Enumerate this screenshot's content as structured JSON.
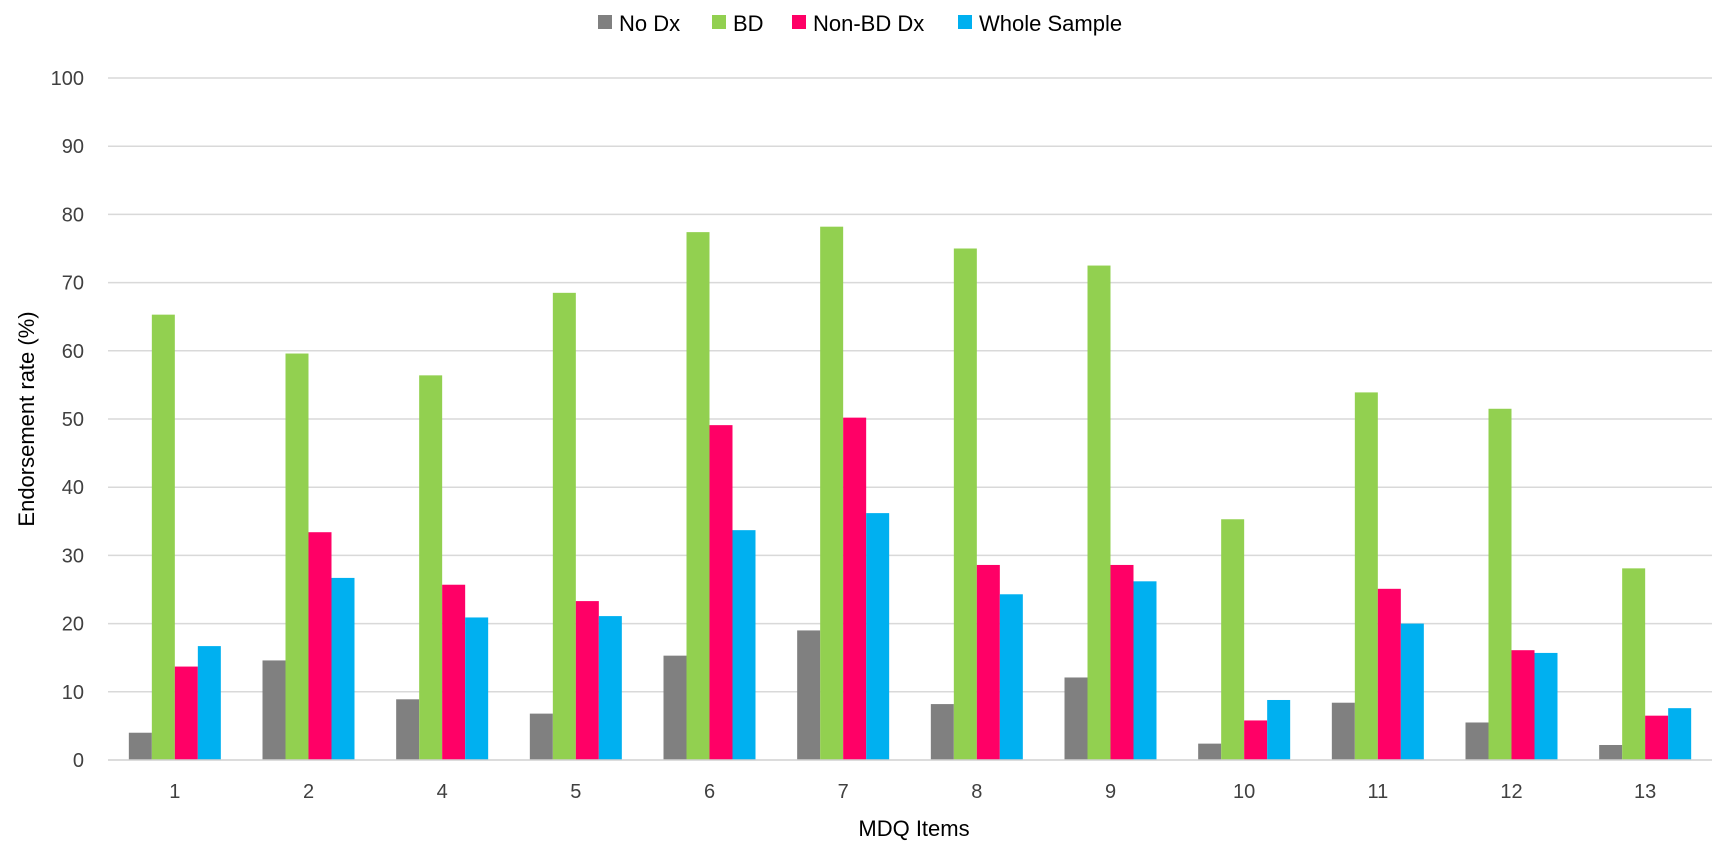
{
  "chart_data": {
    "type": "bar",
    "title": "",
    "xlabel": "MDQ Items",
    "ylabel": "Endorsement rate (%)",
    "ylim": [
      0,
      100
    ],
    "yticks": [
      0,
      10,
      20,
      30,
      40,
      50,
      60,
      70,
      80,
      90,
      100
    ],
    "grid": true,
    "legend_position": "top",
    "categories": [
      "1",
      "2",
      "4",
      "5",
      "6",
      "7",
      "8",
      "9",
      "10",
      "11",
      "12",
      "13"
    ],
    "series": [
      {
        "name": "No Dx",
        "color": "#808080",
        "values": [
          4.0,
          14.6,
          8.9,
          6.8,
          15.3,
          19.0,
          8.2,
          12.1,
          2.4,
          8.4,
          5.5,
          2.2
        ]
      },
      {
        "name": "BD",
        "color": "#92D050",
        "values": [
          65.3,
          59.6,
          56.4,
          68.5,
          77.4,
          78.2,
          75.0,
          72.5,
          35.3,
          53.9,
          51.5,
          28.1
        ]
      },
      {
        "name": "Non-BD Dx",
        "color": "#FF0066",
        "values": [
          13.7,
          33.4,
          25.7,
          23.3,
          49.1,
          50.2,
          28.6,
          28.6,
          5.8,
          25.1,
          16.1,
          6.5
        ]
      },
      {
        "name": "Whole Sample",
        "color": "#00B0F0",
        "values": [
          16.7,
          26.7,
          20.9,
          21.1,
          33.7,
          36.2,
          24.3,
          26.2,
          8.8,
          20.0,
          15.7,
          7.6
        ]
      }
    ]
  }
}
